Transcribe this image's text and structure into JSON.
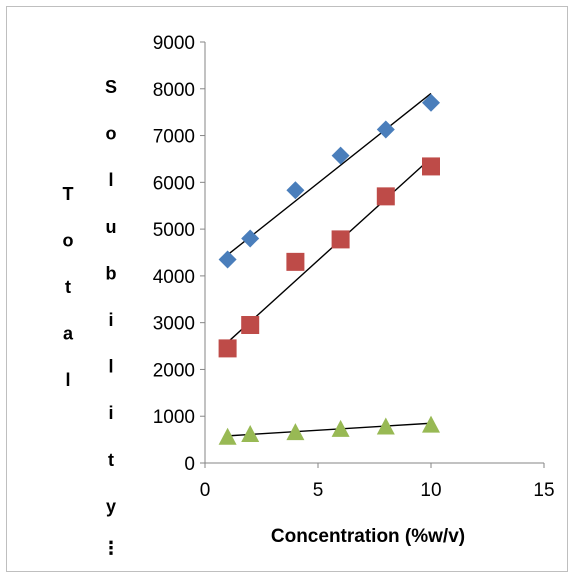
{
  "chart_data": {
    "type": "scatter",
    "xlabel": "Concentration (%w/v)",
    "ylabel": "Total Solubility...",
    "ylabel_truncated_display": {
      "word1": "Total",
      "word2": "Solubility",
      "ellipsis": "⋮"
    },
    "xlim": [
      0,
      15
    ],
    "ylim": [
      0,
      9000
    ],
    "x_ticks": [
      0,
      5,
      10,
      15
    ],
    "y_ticks": [
      0,
      1000,
      2000,
      3000,
      4000,
      5000,
      6000,
      7000,
      8000,
      9000
    ],
    "grid": false,
    "legend": "none",
    "series": [
      {
        "marker": "diamond",
        "color": "#4a7ebb",
        "x": [
          1,
          2,
          4,
          6,
          8,
          10
        ],
        "values": [
          4350,
          4800,
          5830,
          6570,
          7130,
          7700
        ],
        "trendline": {
          "x": [
            1,
            10
          ],
          "y": [
            4450,
            7900
          ]
        }
      },
      {
        "marker": "square",
        "color": "#be4b48",
        "x": [
          1,
          2,
          4,
          6,
          8,
          10
        ],
        "values": [
          2450,
          2950,
          4300,
          4780,
          5700,
          6340
        ],
        "trendline": {
          "x": [
            1,
            10
          ],
          "y": [
            2580,
            6520
          ]
        }
      },
      {
        "marker": "triangle",
        "color": "#98b954",
        "x": [
          1,
          2,
          4,
          6,
          8,
          10
        ],
        "values": [
          560,
          620,
          660,
          730,
          780,
          820
        ],
        "trendline": {
          "x": [
            1,
            10
          ],
          "y": [
            580,
            850
          ]
        }
      }
    ]
  }
}
